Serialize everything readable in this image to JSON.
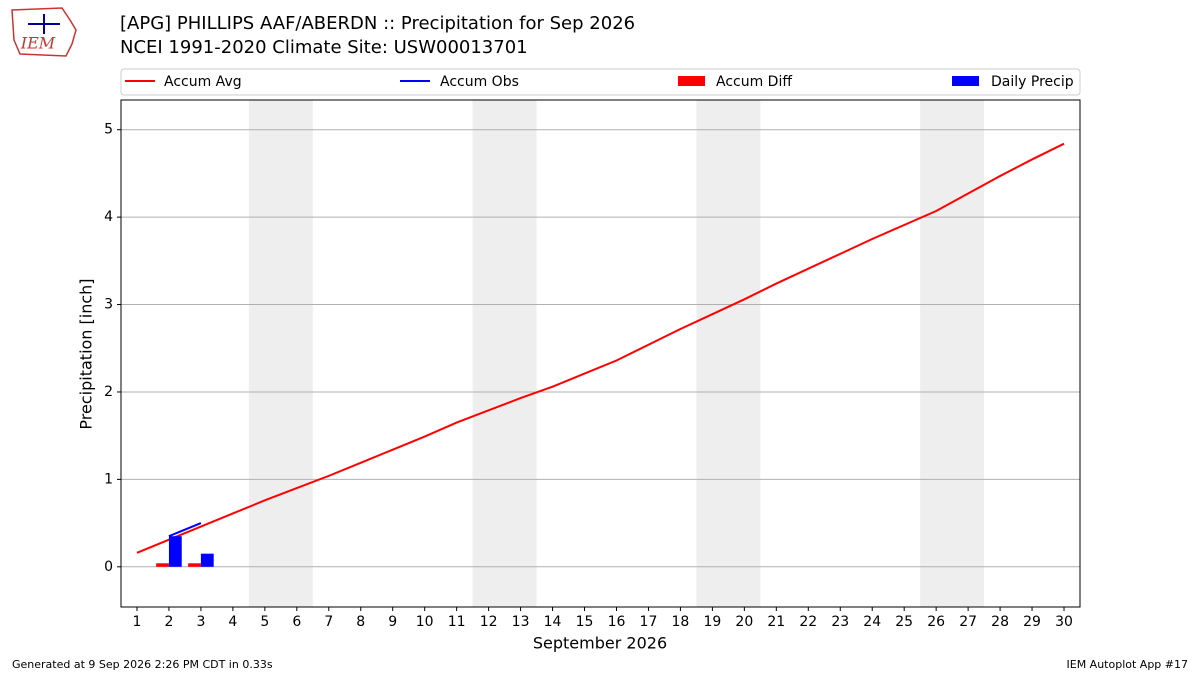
{
  "chart_data": {
    "type": "line",
    "title": "[APG] PHILLIPS AAF/ABERDN :: Precipitation for Sep 2026",
    "subtitle": "NCEI 1991-2020 Climate Site: USW00013701",
    "logo_text": "IEM",
    "x_label": "September 2026",
    "y_label": "Precipitation [inch]",
    "footer_left": "Generated at 9 Sep 2026 2:26 PM CDT in 0.33s",
    "footer_right": "IEM Autoplot App #17",
    "x": [
      1,
      2,
      3,
      4,
      5,
      6,
      7,
      8,
      9,
      10,
      11,
      12,
      13,
      14,
      15,
      16,
      17,
      18,
      19,
      20,
      21,
      22,
      23,
      24,
      25,
      26,
      27,
      28,
      29,
      30
    ],
    "xlim": [
      0.5,
      30.5
    ],
    "xticks": [
      1,
      2,
      3,
      4,
      5,
      6,
      7,
      8,
      9,
      10,
      11,
      12,
      13,
      14,
      15,
      16,
      17,
      18,
      19,
      20,
      21,
      22,
      23,
      24,
      25,
      26,
      27,
      28,
      29,
      30
    ],
    "ylim": [
      -0.46,
      5.34
    ],
    "yticks": [
      0,
      1,
      2,
      3,
      4,
      5
    ],
    "grid": true,
    "shaded_ranges": [
      [
        4.5,
        6.5
      ],
      [
        11.5,
        13.5
      ],
      [
        18.5,
        20.5
      ],
      [
        25.5,
        27.5
      ]
    ],
    "series": [
      {
        "name": "Accum Avg",
        "type": "line",
        "color": "#ff0000",
        "values": [
          0.16,
          0.31,
          0.46,
          0.61,
          0.76,
          0.9,
          1.04,
          1.19,
          1.34,
          1.49,
          1.65,
          1.79,
          1.93,
          2.06,
          2.21,
          2.36,
          2.54,
          2.72,
          2.89,
          3.06,
          3.24,
          3.41,
          3.58,
          3.75,
          3.91,
          4.07,
          4.27,
          4.47,
          4.66,
          4.84
        ]
      },
      {
        "name": "Accum Obs",
        "type": "line",
        "color": "#0000ff",
        "values": [
          null,
          0.35,
          0.5,
          null,
          null,
          null,
          null,
          null,
          null,
          null,
          null,
          null,
          null,
          null,
          null,
          null,
          null,
          null,
          null,
          null,
          null,
          null,
          null,
          null,
          null,
          null,
          null,
          null,
          null,
          null
        ]
      },
      {
        "name": "Accum Diff",
        "type": "bar",
        "offset": "left",
        "color": "#ff0000",
        "values": [
          null,
          0.04,
          0.04,
          null,
          null,
          null,
          null,
          null,
          null,
          null,
          null,
          null,
          null,
          null,
          null,
          null,
          null,
          null,
          null,
          null,
          null,
          null,
          null,
          null,
          null,
          null,
          null,
          null,
          null,
          null
        ]
      },
      {
        "name": "Daily Precip",
        "type": "bar",
        "offset": "right",
        "color": "#0000ff",
        "values": [
          0,
          0.35,
          0.15,
          null,
          null,
          null,
          null,
          null,
          null,
          null,
          null,
          null,
          null,
          null,
          null,
          null,
          null,
          null,
          null,
          null,
          null,
          null,
          null,
          null,
          null,
          null,
          null,
          null,
          null,
          null
        ]
      }
    ]
  }
}
